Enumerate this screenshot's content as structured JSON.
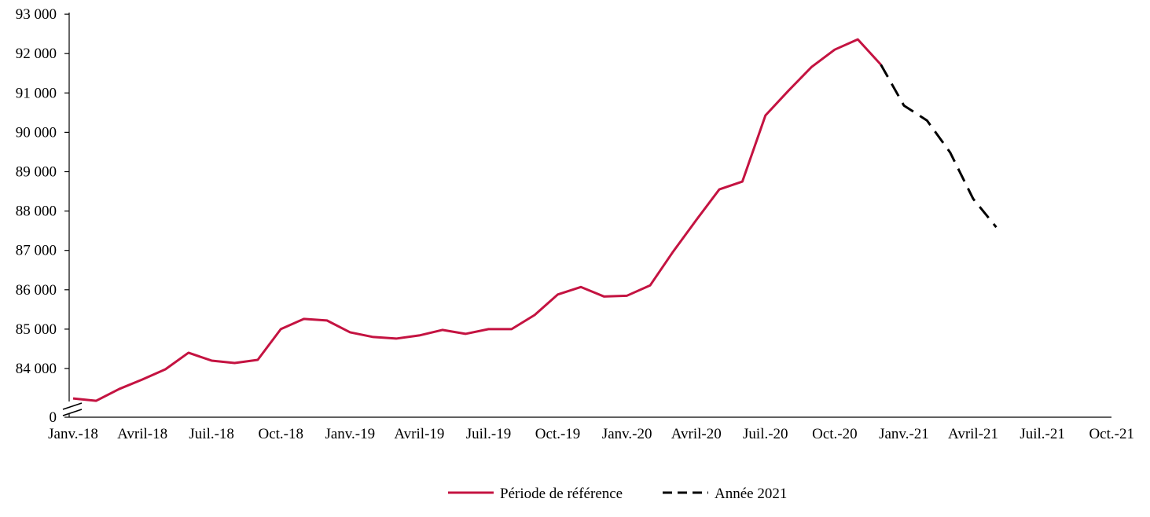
{
  "chart_data": {
    "type": "line",
    "title": "",
    "xlabel": "",
    "ylabel": "",
    "ylim": [
      83000,
      93000
    ],
    "y_axis_break": true,
    "y_ticks": [
      {
        "value": 0,
        "label": "0"
      },
      {
        "value": 84000,
        "label": "84 000"
      },
      {
        "value": 85000,
        "label": "85 000"
      },
      {
        "value": 86000,
        "label": "86 000"
      },
      {
        "value": 87000,
        "label": "87 000"
      },
      {
        "value": 88000,
        "label": "88 000"
      },
      {
        "value": 89000,
        "label": "89 000"
      },
      {
        "value": 90000,
        "label": "90 000"
      },
      {
        "value": 91000,
        "label": "91 000"
      },
      {
        "value": 92000,
        "label": "92 000"
      },
      {
        "value": 93000,
        "label": "93 000"
      }
    ],
    "x_tick_labels": [
      "Janv.-18",
      "Avril-18",
      "Juil.-18",
      "Oct.-18",
      "Janv.-19",
      "Avril-19",
      "Juil.-19",
      "Oct.-19",
      "Janv.-20",
      "Avril-20",
      "Juil.-20",
      "Oct.-20",
      "Janv.-21",
      "Avril-21",
      "Juil.-21",
      "Oct.-21"
    ],
    "x_range_months": [
      "2018-01",
      "2021-10"
    ],
    "grid": false,
    "legend_position": "bottom",
    "series": [
      {
        "name": "Période de référence",
        "color": "#c41341",
        "style": "solid",
        "start": "2018-01",
        "values": [
          83240,
          83180,
          83480,
          83720,
          83980,
          84400,
          84200,
          84140,
          84220,
          85000,
          85260,
          85220,
          84920,
          84800,
          84760,
          84840,
          84980,
          84880,
          85000,
          85000,
          85360,
          85880,
          86070,
          85830,
          85850,
          86110,
          86970,
          87770,
          88550,
          88750,
          90430,
          91060,
          91660,
          92100,
          92360,
          91720
        ]
      },
      {
        "name": "Année 2021",
        "color": "#000000",
        "style": "dashed",
        "start": "2020-12",
        "values": [
          91720,
          90680,
          90300,
          89490,
          88310,
          87590
        ]
      }
    ]
  }
}
